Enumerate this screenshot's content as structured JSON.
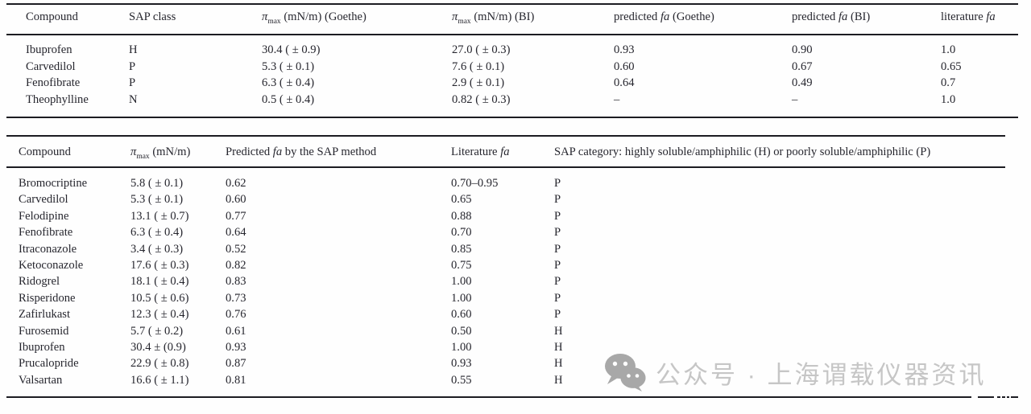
{
  "table1": {
    "headers": {
      "compound": "Compound",
      "sap_class": "SAP class",
      "pimax_goethe": {
        "pi": "π",
        "sub": "max",
        "rest": " (mN/m) (Goethe)"
      },
      "pimax_bi": {
        "pi": "π",
        "sub": "max",
        "rest": " (mN/m) (BI)"
      },
      "fa_goethe": {
        "pre": "predicted ",
        "fa": "fa",
        "post": " (Goethe)"
      },
      "fa_bi": {
        "pre": "predicted ",
        "fa": "fa",
        "post": " (BI)"
      },
      "fa_lit": {
        "pre": "literature ",
        "fa": "fa",
        "post": ""
      }
    },
    "rows": [
      {
        "compound": "Ibuprofen",
        "sap_class": "H",
        "pimax_goethe": "30.4 ( ± 0.9)",
        "pimax_bi": "27.0 ( ± 0.3)",
        "fa_goethe": "0.93",
        "fa_bi": "0.90",
        "fa_lit": "1.0"
      },
      {
        "compound": "Carvedilol",
        "sap_class": "P",
        "pimax_goethe": "5.3 ( ± 0.1)",
        "pimax_bi": "7.6 ( ± 0.1)",
        "fa_goethe": "0.60",
        "fa_bi": "0.67",
        "fa_lit": "0.65"
      },
      {
        "compound": "Fenofibrate",
        "sap_class": "P",
        "pimax_goethe": "6.3 ( ± 0.4)",
        "pimax_bi": "2.9 ( ± 0.1)",
        "fa_goethe": "0.64",
        "fa_bi": "0.49",
        "fa_lit": "0.7"
      },
      {
        "compound": "Theophylline",
        "sap_class": "N",
        "pimax_goethe": "0.5 ( ± 0.4)",
        "pimax_bi": "0.82 ( ± 0.3)",
        "fa_goethe": "–",
        "fa_bi": "–",
        "fa_lit": "1.0"
      }
    ]
  },
  "table2": {
    "headers": {
      "compound": "Compound",
      "pimax": {
        "pi": "π",
        "sub": "max",
        "rest": " (mN/m)"
      },
      "predicted": {
        "pre": "Predicted ",
        "fa": "fa",
        "post": " by the SAP method"
      },
      "literature": {
        "pre": "Literature ",
        "fa": "fa",
        "post": ""
      },
      "category": "SAP category: highly soluble/amphiphilic (H) or poorly soluble/amphiphilic (P)"
    },
    "rows": [
      {
        "compound": "Bromocriptine",
        "pimax": "5.8 ( ± 0.1)",
        "predicted": "0.62",
        "literature": "0.70–0.95",
        "category": "P"
      },
      {
        "compound": "Carvedilol",
        "pimax": "5.3 ( ± 0.1)",
        "predicted": "0.60",
        "literature": "0.65",
        "category": "P"
      },
      {
        "compound": "Felodipine",
        "pimax": "13.1 ( ± 0.7)",
        "predicted": "0.77",
        "literature": "0.88",
        "category": "P"
      },
      {
        "compound": "Fenofibrate",
        "pimax": "6.3 ( ± 0.4)",
        "predicted": "0.64",
        "literature": "0.70",
        "category": "P"
      },
      {
        "compound": "Itraconazole",
        "pimax": "3.4 ( ± 0.3)",
        "predicted": "0.52",
        "literature": "0.85",
        "category": "P"
      },
      {
        "compound": "Ketoconazole",
        "pimax": "17.6 ( ± 0.3)",
        "predicted": "0.82",
        "literature": "0.75",
        "category": "P"
      },
      {
        "compound": "Ridogrel",
        "pimax": "18.1 ( ± 0.4)",
        "predicted": "0.83",
        "literature": "1.00",
        "category": "P"
      },
      {
        "compound": "Risperidone",
        "pimax": "10.5 ( ± 0.6)",
        "predicted": "0.73",
        "literature": "1.00",
        "category": "P"
      },
      {
        "compound": "Zafirlukast",
        "pimax": "12.3 ( ± 0.4)",
        "predicted": "0.76",
        "literature": "0.60",
        "category": "P"
      },
      {
        "compound": "Furosemid",
        "pimax": "5.7 ( ± 0.2)",
        "predicted": "0.61",
        "literature": "0.50",
        "category": "H"
      },
      {
        "compound": "Ibuprofen",
        "pimax": "30.4 ± (0.9)",
        "predicted": "0.93",
        "literature": "1.00",
        "category": "H"
      },
      {
        "compound": "Prucalopride",
        "pimax": "22.9 ( ± 0.8)",
        "predicted": "0.87",
        "literature": "0.93",
        "category": "H"
      },
      {
        "compound": "Valsartan",
        "pimax": "16.6 ( ± 1.1)",
        "predicted": "0.81",
        "literature": "0.55",
        "category": "H"
      }
    ]
  },
  "watermark": {
    "label": "公众号 · 上海谓载仪器资讯",
    "icon": "wechat-icon",
    "text_color": "#c6c6c6",
    "icon_color": "#a8a8a8"
  }
}
